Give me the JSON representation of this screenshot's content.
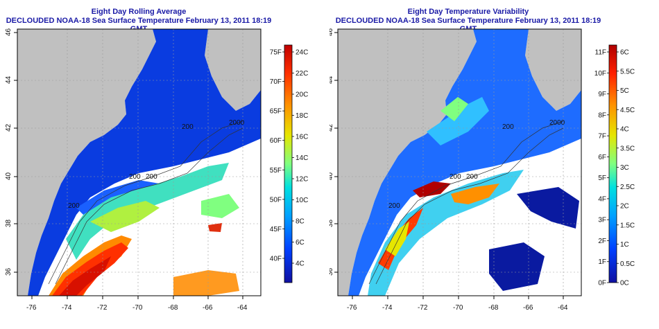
{
  "panels": [
    {
      "title_line1": "Eight Day Rolling Average",
      "title_line2": "DECLOUDED NOAA-18 Sea Surface Temperature February 13, 2011 18:19 GMT",
      "colorbar": {
        "left_labels": [
          "75F",
          "70F",
          "65F",
          "60F",
          "55F",
          "50F",
          "45F",
          "40F"
        ],
        "right_labels": [
          "24C",
          "22C",
          "20C",
          "18C",
          "16C",
          "14C",
          "12C",
          "10C",
          "8C",
          "6C",
          "4C"
        ],
        "stops": [
          "#c00000",
          "#ff3000",
          "#ff9000",
          "#e6e600",
          "#80ff80",
          "#00e0e0",
          "#00a0ff",
          "#0040ff",
          "#1010a0"
        ]
      },
      "contour_labels": [
        "200",
        "200",
        "200",
        "2000",
        "200"
      ]
    },
    {
      "title_line1": "Eight Day Temperature Variability",
      "title_line2": "DECLOUDED NOAA-18 Sea Surface Temperature February 13, 2011 18:19 GMT",
      "colorbar": {
        "left_labels": [
          "11F",
          "10F",
          "9F",
          "8F",
          "7F",
          "6F",
          "5F",
          "4F",
          "3F",
          "2F",
          "1F",
          "0F"
        ],
        "right_labels": [
          "6C",
          "5.5C",
          "5C",
          "4.5C",
          "4C",
          "3.5C",
          "3C",
          "2.5C",
          "2C",
          "1.5C",
          "1C",
          "0.5C",
          "0C"
        ],
        "stops": [
          "#b00000",
          "#ff2000",
          "#ff9000",
          "#e6e600",
          "#80ff80",
          "#00e0e0",
          "#00a0ff",
          "#0040ff",
          "#1010a0"
        ]
      },
      "contour_labels": [
        "200",
        "200",
        "200",
        "2000",
        "200"
      ]
    }
  ],
  "axes": {
    "lon_ticks": [
      "-76",
      "-74",
      "-72",
      "-70",
      "-68",
      "-66",
      "-64"
    ],
    "lat_ticks": [
      "36",
      "38",
      "40",
      "42",
      "44",
      "46"
    ]
  },
  "colors": {
    "land": "#c0c0c0",
    "no_data": "#ffffff",
    "title": "#1a1aa6"
  }
}
